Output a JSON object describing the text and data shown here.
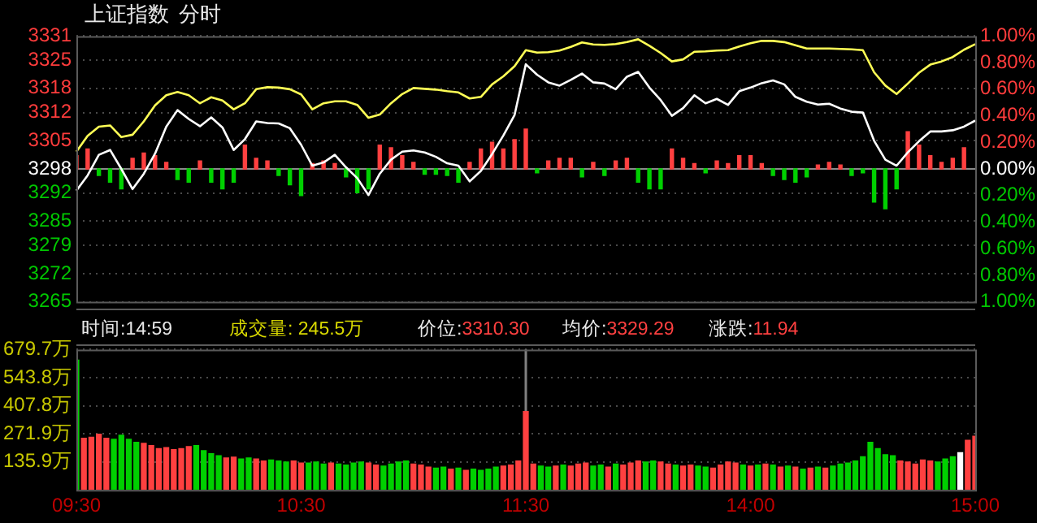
{
  "chart_data": [
    {
      "type": "line",
      "title": "上证指数",
      "subtitle": "分时",
      "annotations": [
        "时间:14:59",
        "成交量: 245.5万",
        "价位:3310.30",
        "均价:3329.29",
        "涨跌:11.94"
      ],
      "categories": [
        null,
        null,
        null,
        null,
        null,
        null,
        null,
        null,
        null,
        null,
        null,
        null,
        null,
        null,
        null,
        null,
        null,
        null,
        null,
        null,
        null,
        null,
        null,
        null,
        null,
        null,
        null,
        null,
        null,
        null,
        null,
        null,
        null,
        null,
        null,
        null,
        null,
        null,
        null,
        null,
        null,
        null,
        null,
        null,
        null,
        null,
        null,
        null,
        null,
        null,
        null,
        null,
        null,
        null,
        null,
        null,
        null,
        null,
        null,
        null,
        null,
        null,
        null,
        null,
        null,
        null,
        null,
        null,
        null,
        null,
        null,
        null,
        null,
        null,
        null,
        null,
        null,
        null,
        null,
        null,
        null
      ],
      "tick_labels": "y",
      "grid": "y",
      "marker": "none",
      "ref_lines": [
        {
          "axis": "y",
          "value": 3298,
          "color": "#8a8a8a"
        }
      ],
      "ylim": [
        3265,
        3331
      ],
      "yticks": [
        3265,
        3272,
        3279,
        3285,
        3292,
        3298,
        3305,
        3312,
        3318,
        3325,
        3331
      ],
      "y2lim": [
        -1,
        1
      ],
      "y2ticks": [
        {
          "value": -1,
          "label": "1.00%"
        },
        {
          "value": -0.8,
          "label": "0.80%"
        },
        {
          "value": -0.6,
          "label": "0.60%"
        },
        {
          "value": -0.4,
          "label": "0.40%"
        },
        {
          "value": -0.2,
          "label": "0.20%"
        },
        {
          "value": 0,
          "label": "0.00%"
        },
        {
          "value": 0.2,
          "label": "0.20%"
        },
        {
          "value": 0.4,
          "label": "0.40%"
        },
        {
          "value": 0.6,
          "label": "0.60%"
        },
        {
          "value": 0.8,
          "label": "0.80%"
        },
        {
          "value": 1,
          "label": "1.00%"
        }
      ],
      "series": [
        {
          "type": "bar",
          "axis": "y2",
          "values": [
            0.1,
            0.15,
            -0.05,
            -0.1,
            -0.15,
            0.08,
            0.12,
            0.1,
            0.05,
            -0.08,
            -0.1,
            0.06,
            -0.1,
            -0.15,
            -0.1,
            0.18,
            0.08,
            0.06,
            -0.05,
            -0.12,
            -0.2,
            0.04,
            0.06,
            0.04,
            -0.06,
            -0.18,
            -0.15,
            0.18,
            0.16,
            0.1,
            0.05,
            -0.04,
            -0.04,
            -0.05,
            -0.1,
            0.05,
            0.15,
            0.2,
            0.15,
            0.22,
            0.3,
            -0.03,
            0.06,
            0.08,
            0.08,
            -0.06,
            0.05,
            -0.05,
            0.06,
            0.08,
            -0.1,
            -0.15,
            -0.15,
            0.15,
            0.08,
            0.04,
            -0.03,
            0.06,
            0.04,
            0.1,
            0.1,
            0.04,
            -0.05,
            -0.08,
            -0.1,
            -0.06,
            0.03,
            0.05,
            0.03,
            -0.05,
            -0.03,
            -0.25,
            -0.3,
            -0.15,
            0.28,
            0.18,
            0.1,
            0.05,
            0.08,
            0.16,
            null
          ],
          "colors": [
            "#ff4040",
            "#ff4040",
            "#00d000",
            "#00d000",
            "#00d000",
            "#ff4040",
            "#ff4040",
            "#ff4040",
            "#ff4040",
            "#00d000",
            "#00d000",
            "#ff4040",
            "#00d000",
            "#00d000",
            "#00d000",
            "#ff4040",
            "#ff4040",
            "#ff4040",
            "#00d000",
            "#00d000",
            "#00d000",
            "#ff4040",
            "#ff4040",
            "#ff4040",
            "#00d000",
            "#00d000",
            "#00d000",
            "#ff4040",
            "#ff4040",
            "#ff4040",
            "#ff4040",
            "#00d000",
            "#00d000",
            "#00d000",
            "#00d000",
            "#ff4040",
            "#ff4040",
            "#ff4040",
            "#ff4040",
            "#ff4040",
            "#ff4040",
            "#00d000",
            "#ff4040",
            "#ff4040",
            "#ff4040",
            "#00d000",
            "#ff4040",
            "#00d000",
            "#ff4040",
            "#ff4040",
            "#00d000",
            "#00d000",
            "#00d000",
            "#ff4040",
            "#ff4040",
            "#ff4040",
            "#00d000",
            "#ff4040",
            "#ff4040",
            "#ff4040",
            "#ff4040",
            "#ff4040",
            "#00d000",
            "#00d000",
            "#00d000",
            "#00d000",
            "#ff4040",
            "#ff4040",
            "#ff4040",
            "#00d000",
            "#00d000",
            "#00d000",
            "#00d000",
            "#00d000",
            "#ff4040",
            "#ff4040",
            "#ff4040",
            "#ff4040",
            "#ff4040",
            "#ff4040",
            "#ff4040"
          ]
        },
        {
          "type": "line",
          "color": "#ffffff",
          "values": [
            3292.6,
            3296.4,
            3301.5,
            3302.7,
            3298,
            3293,
            3296.8,
            3301.8,
            3308.5,
            3312.6,
            3310.4,
            3308.6,
            3310.8,
            3308.3,
            3302.7,
            3305.4,
            3309.8,
            3309.4,
            3309.3,
            3308.1,
            3304,
            3298.8,
            3299.6,
            3301.5,
            3298.4,
            3295.7,
            3291.5,
            3296.8,
            3300.3,
            3302.3,
            3302.6,
            3302.1,
            3301,
            3299.4,
            3298.8,
            3294.9,
            3297.5,
            3301.7,
            3306.3,
            3311.4,
            3324,
            3321.4,
            3319.5,
            3318.7,
            3320.1,
            3321.7,
            3319.5,
            3319.2,
            3317.8,
            3320.9,
            3322.1,
            3318.2,
            3315.1,
            3311.2,
            3313.1,
            3316.3,
            3314.3,
            3315.4,
            3313.9,
            3317.3,
            3318.2,
            3319.3,
            3320,
            3319,
            3315.9,
            3314.7,
            3314,
            3314.2,
            3313,
            3312.2,
            3312,
            3305,
            3300.3,
            3298.8,
            3302.1,
            3304.9,
            3307.3,
            3307.3,
            3307.6,
            3308.5,
            3310
          ]
        },
        {
          "type": "line",
          "color": "#ffff55",
          "values": [
            3302.3,
            3306.2,
            3308.5,
            3308.8,
            3305.9,
            3306.5,
            3309.8,
            3313.8,
            3316.3,
            3317.1,
            3316.3,
            3314.3,
            3315.8,
            3315,
            3312.8,
            3314.3,
            3317.8,
            3318.3,
            3318.2,
            3317.8,
            3316.5,
            3312.8,
            3314.3,
            3314.8,
            3314.8,
            3313.9,
            3310.7,
            3311.5,
            3314.3,
            3316.6,
            3318.1,
            3317.9,
            3317.7,
            3317.3,
            3317,
            3315.5,
            3315.9,
            3319,
            3321,
            3323.5,
            3327.5,
            3326.9,
            3327,
            3327.4,
            3328.3,
            3329.4,
            3328.9,
            3328.8,
            3329,
            3329.5,
            3330.2,
            3328.6,
            3326.8,
            3324.7,
            3325.2,
            3327.1,
            3327.2,
            3327.4,
            3327.5,
            3328.4,
            3329.2,
            3329.8,
            3329.8,
            3329.5,
            3328.7,
            3327.9,
            3327.9,
            3327.9,
            3327.8,
            3327.7,
            3327.5,
            3322,
            3318.7,
            3316.6,
            3319.2,
            3321.9,
            3323.9,
            3324.7,
            3325.8,
            3327.6,
            3329
          ]
        }
      ]
    },
    {
      "type": "bar",
      "categories": [
        "09:30",
        null,
        null,
        null,
        null,
        null,
        null,
        null,
        null,
        null,
        null,
        null,
        null,
        null,
        null,
        null,
        null,
        null,
        null,
        null,
        null,
        null,
        null,
        null,
        null,
        null,
        null,
        null,
        null,
        null,
        "10:30",
        null,
        null,
        null,
        null,
        null,
        null,
        null,
        null,
        null,
        null,
        null,
        null,
        null,
        null,
        null,
        null,
        null,
        null,
        null,
        null,
        null,
        null,
        null,
        null,
        null,
        null,
        null,
        null,
        null,
        "11:30",
        null,
        null,
        null,
        null,
        null,
        null,
        null,
        null,
        null,
        null,
        null,
        null,
        null,
        null,
        null,
        null,
        null,
        null,
        null,
        null,
        null,
        null,
        null,
        null,
        null,
        null,
        null,
        null,
        null,
        "14:00",
        null,
        null,
        null,
        null,
        null,
        null,
        null,
        null,
        null,
        null,
        null,
        null,
        null,
        null,
        null,
        null,
        null,
        null,
        null,
        null,
        null,
        null,
        null,
        null,
        null,
        null,
        null,
        null,
        null,
        "15:00"
      ],
      "ylim": [
        0,
        679.7
      ],
      "yticks": [
        {
          "value": 135.9,
          "label": "135.9万"
        },
        {
          "value": 271.9,
          "label": "271.9万"
        },
        {
          "value": 407.8,
          "label": "407.8万"
        },
        {
          "value": 543.8,
          "label": "543.8万"
        },
        {
          "value": 679.7,
          "label": "679.7万"
        }
      ],
      "grid": "y",
      "ref_lines": [
        {
          "axis": "x",
          "value": "11:30",
          "color": "#808080"
        }
      ],
      "values": [
        629,
        250,
        255,
        270,
        250,
        245,
        265,
        245,
        230,
        225,
        215,
        200,
        205,
        195,
        200,
        210,
        215,
        190,
        175,
        165,
        155,
        158,
        150,
        155,
        150,
        140,
        145,
        140,
        135,
        140,
        130,
        130,
        135,
        125,
        130,
        125,
        120,
        130,
        135,
        130,
        120,
        115,
        125,
        135,
        140,
        125,
        120,
        110,
        105,
        110,
        100,
        105,
        95,
        100,
        95,
        100,
        110,
        115,
        120,
        140,
        380,
        125,
        115,
        110,
        115,
        120,
        115,
        125,
        130,
        115,
        120,
        110,
        125,
        120,
        130,
        140,
        135,
        140,
        135,
        125,
        120,
        115,
        120,
        115,
        110,
        105,
        120,
        135,
        130,
        120,
        115,
        120,
        125,
        120,
        110,
        115,
        110,
        100,
        105,
        110,
        105,
        115,
        125,
        130,
        140,
        160,
        230,
        200,
        170,
        165,
        140,
        135,
        125,
        145,
        140,
        135,
        150,
        160,
        180,
        240,
        260
      ],
      "colors": [
        "#00d000",
        "#ff4040",
        "#ff4040",
        "#ff4040",
        "#ff4040",
        "#00d000",
        "#00d000",
        "#00d000",
        "#00d000",
        "#ff4040",
        "#ff4040",
        "#ff4040",
        "#ff4040",
        "#ff4040",
        "#ff4040",
        "#ff4040",
        "#00d000",
        "#00d000",
        "#00d000",
        "#00d000",
        "#ff4040",
        "#ff4040",
        "#00d000",
        "#00d000",
        "#ff4040",
        "#ff4040",
        "#00d000",
        "#00d000",
        "#00d000",
        "#ff4040",
        "#ff4040",
        "#00d000",
        "#00d000",
        "#00d000",
        "#ff4040",
        "#00d000",
        "#00d000",
        "#00d000",
        "#00d000",
        "#ff4040",
        "#ff4040",
        "#00d000",
        "#00d000",
        "#00d000",
        "#00d000",
        "#ff4040",
        "#ff4040",
        "#ff4040",
        "#00d000",
        "#00d000",
        "#ff4040",
        "#00d000",
        "#ff4040",
        "#00d000",
        "#00d000",
        "#00d000",
        "#00d000",
        "#ff4040",
        "#ff4040",
        "#ff4040",
        "#ff4040",
        "#ff4040",
        "#00d000",
        "#00d000",
        "#ff4040",
        "#00d000",
        "#ff4040",
        "#ff4040",
        "#ff4040",
        "#00d000",
        "#00d000",
        "#ff4040",
        "#00d000",
        "#ff4040",
        "#ff4040",
        "#ff4040",
        "#00d000",
        "#00d000",
        "#ff4040",
        "#ff4040",
        "#00d000",
        "#ff4040",
        "#ff4040",
        "#00d000",
        "#00d000",
        "#ff4040",
        "#ff4040",
        "#ff4040",
        "#ff4040",
        "#00d000",
        "#ff4040",
        "#00d000",
        "#ff4040",
        "#00d000",
        "#ff4040",
        "#00d000",
        "#ff4040",
        "#00d000",
        "#ff4040",
        "#00d000",
        "#ff4040",
        "#00d000",
        "#00d000",
        "#00d000",
        "#00d000",
        "#00d000",
        "#00d000",
        "#00d000",
        "#00d000",
        "#00d000",
        "#ff4040",
        "#ff4040",
        "#ff4040",
        "#ff4040",
        "#ff4040",
        "#00d000",
        "#00d000",
        "#00d000",
        "#ffffff",
        "#ff4040",
        "#ff4040"
      ]
    }
  ]
}
